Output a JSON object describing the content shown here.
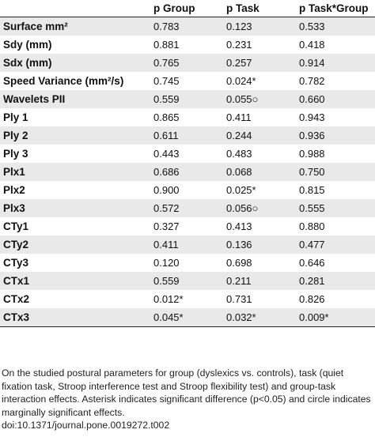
{
  "table": {
    "headers": [
      "",
      "p Group",
      "p Task",
      "p Task*Group"
    ],
    "rows": [
      {
        "label": "Surface mm²",
        "values": [
          "0.783",
          "0.123",
          "0.533"
        ]
      },
      {
        "label": "Sdy (mm)",
        "values": [
          "0.881",
          "0.231",
          "0.418"
        ]
      },
      {
        "label": "Sdx (mm)",
        "values": [
          "0.765",
          "0.257",
          "0.914"
        ]
      },
      {
        "label": "Speed Variance (mm²/s)",
        "values": [
          "0.745",
          "0.024*",
          "0.782"
        ]
      },
      {
        "label": "Wavelets PII",
        "values": [
          "0.559",
          "0.055○",
          "0.660"
        ]
      },
      {
        "label": "Ply 1",
        "values": [
          "0.865",
          "0.411",
          "0.943"
        ]
      },
      {
        "label": "Ply 2",
        "values": [
          "0.611",
          "0.244",
          "0.936"
        ]
      },
      {
        "label": "Ply 3",
        "values": [
          "0.443",
          "0.483",
          "0.988"
        ]
      },
      {
        "label": "Plx1",
        "values": [
          "0.686",
          "0.068",
          "0.750"
        ]
      },
      {
        "label": "Plx2",
        "values": [
          "0.900",
          "0.025*",
          "0.815"
        ]
      },
      {
        "label": "Plx3",
        "values": [
          "0.572",
          "0.056○",
          "0.555"
        ]
      },
      {
        "label": "CTy1",
        "values": [
          "0.327",
          "0.413",
          "0.880"
        ]
      },
      {
        "label": "CTy2",
        "values": [
          "0.411",
          "0.136",
          "0.477"
        ]
      },
      {
        "label": "CTy3",
        "values": [
          "0.120",
          "0.698",
          "0.646"
        ]
      },
      {
        "label": "CTx1",
        "values": [
          "0.559",
          "0.211",
          "0.281"
        ]
      },
      {
        "label": "CTx2",
        "values": [
          "0.012*",
          "0.731",
          "0.826"
        ]
      },
      {
        "label": "CTx3",
        "values": [
          "0.045*",
          "0.032*",
          "0.009*"
        ]
      }
    ]
  },
  "footnote": "On the studied postural parameters for group (dyslexics vs. controls), task (quiet fixation task, Stroop interference test and Stroop flexibility test) and group-task interaction effects. Asterisk indicates significant difference (p<0.05) and circle indicates marginally significant effects.",
  "doi": "doi:10.1371/journal.pone.0019272.t002"
}
